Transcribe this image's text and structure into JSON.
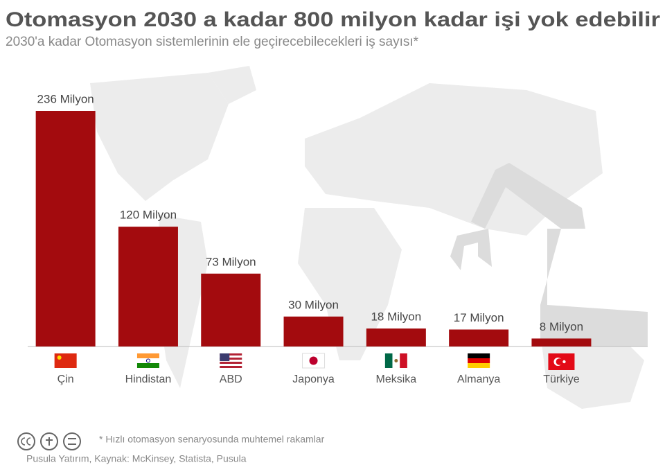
{
  "chart_data": {
    "type": "bar",
    "title": "Otomasyon 2030 a kadar 800 milyon kadar işi yok edebilir",
    "subtitle": "2030'a kadar Otomasyon sistemlerinin ele geçirecebilecekleri iş sayısı*",
    "categories": [
      "Çin",
      "Hindistan",
      "ABD",
      "Japonya",
      "Meksika",
      "Almanya",
      "Türkiye"
    ],
    "values": [
      236,
      120,
      73,
      30,
      18,
      17,
      8
    ],
    "value_labels": [
      "236 Milyon",
      "120 Milyon",
      "73 Milyon",
      "30 Milyon",
      "18 Milyon",
      "17 Milyon",
      "8 Milyon"
    ],
    "color": "#a30b0e",
    "note": "* Hızlı otomasyon senaryosunda muhtemel rakamlar",
    "source": "Pusula Yatırım, Kaynak: McKinsey, Statista, Pusula"
  }
}
